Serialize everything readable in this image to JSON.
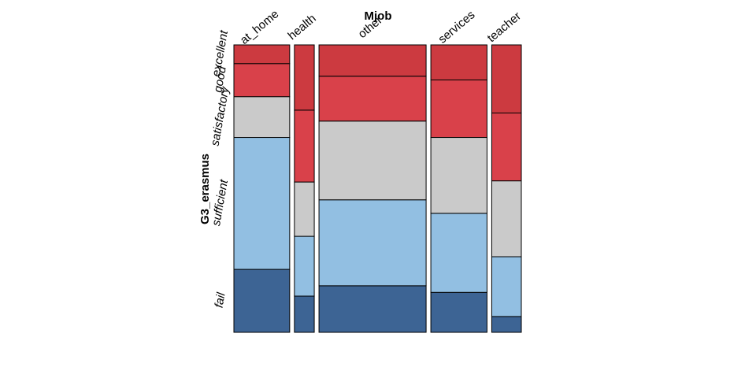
{
  "chart_data": {
    "type": "mosaic",
    "title": "",
    "xlabel": "Mjob",
    "ylabel": "G3_erasmus",
    "categories": [
      "at_home",
      "health",
      "other",
      "services",
      "teacher"
    ],
    "column_shares": [
      0.149,
      0.053,
      0.286,
      0.15,
      0.079
    ],
    "levels": [
      "fail",
      "sufficient",
      "satisfactory",
      "good",
      "excellent"
    ],
    "colors": {
      "fail": "#3d6494",
      "sufficient": "#92bfe2",
      "satisfactory": "#cacaca",
      "good": "#d9414a",
      "excellent": "#cc3a40"
    },
    "series": [
      {
        "name": "fail",
        "values": [
          0.219,
          0.126,
          0.162,
          0.139,
          0.055
        ]
      },
      {
        "name": "sufficient",
        "values": [
          0.459,
          0.208,
          0.299,
          0.275,
          0.208
        ]
      },
      {
        "name": "satisfactory",
        "values": [
          0.142,
          0.189,
          0.274,
          0.264,
          0.264
        ]
      },
      {
        "name": "good",
        "values": [
          0.115,
          0.25,
          0.156,
          0.2,
          0.236
        ]
      },
      {
        "name": "excellent",
        "values": [
          0.065,
          0.227,
          0.109,
          0.122,
          0.237
        ]
      }
    ]
  }
}
